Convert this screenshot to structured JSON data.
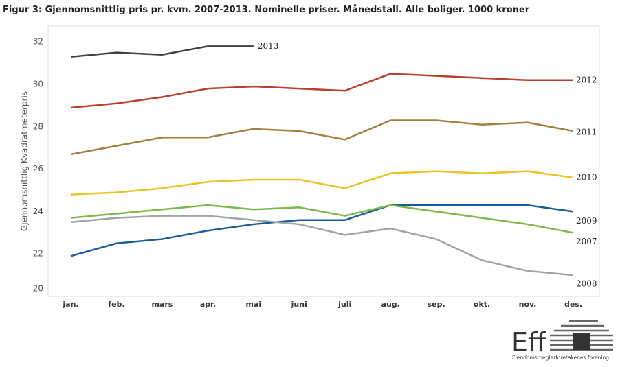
{
  "chart_data": {
    "type": "line",
    "title": "Figur 3: Gjennomsnittlig pris pr. kvm. 2007-2013. Nominelle priser. Månedstall. Alle boliger. 1000 kroner",
    "y_label": "Gjennomsnittlig Kvadratmeterpris",
    "categories": [
      "jan.",
      "feb.",
      "mars",
      "apr.",
      "mai",
      "juni",
      "juli",
      "aug.",
      "sep.",
      "okt.",
      "nov.",
      "des."
    ],
    "ylim": [
      20,
      32.75
    ],
    "yticks": [
      20,
      22,
      24,
      26,
      28,
      30,
      32
    ],
    "grid": false,
    "series": [
      {
        "name": "2013",
        "color": "#404040",
        "values": [
          31.3,
          31.5,
          31.4,
          31.8,
          31.8,
          null,
          null,
          null,
          null,
          null,
          null,
          null
        ]
      },
      {
        "name": "2012",
        "color": "#b9412b",
        "values": [
          28.9,
          29.1,
          29.4,
          29.8,
          29.9,
          29.8,
          29.7,
          30.5,
          30.4,
          30.3,
          30.2,
          30.2
        ]
      },
      {
        "name": "2011",
        "color": "#a27f3f",
        "values": [
          26.7,
          27.1,
          27.5,
          27.5,
          27.9,
          27.8,
          27.4,
          28.3,
          28.3,
          28.1,
          28.2,
          27.8
        ]
      },
      {
        "name": "2010",
        "color": "#e9c324",
        "values": [
          24.8,
          24.9,
          25.1,
          25.4,
          25.5,
          25.5,
          25.1,
          25.8,
          25.9,
          25.8,
          25.9,
          25.6
        ]
      },
      {
        "name": "2009",
        "color": "#1a5c98",
        "values": [
          21.9,
          22.5,
          22.7,
          23.1,
          23.4,
          23.6,
          23.6,
          24.3,
          24.3,
          24.3,
          24.3,
          24.0
        ]
      },
      {
        "name": "2008",
        "color": "#9fa4a7",
        "values": [
          23.5,
          23.7,
          23.8,
          23.8,
          23.6,
          23.4,
          22.9,
          23.2,
          22.7,
          21.7,
          21.2,
          21.0
        ]
      },
      {
        "name": "2007",
        "color": "#7cb84a",
        "values": [
          23.7,
          23.9,
          24.1,
          24.3,
          24.1,
          24.2,
          23.8,
          24.3,
          24.0,
          23.7,
          23.4,
          23.0
        ]
      }
    ]
  },
  "logo": {
    "mark": "Eff",
    "name": "Eiendomsmeglerforetakenes forening"
  }
}
